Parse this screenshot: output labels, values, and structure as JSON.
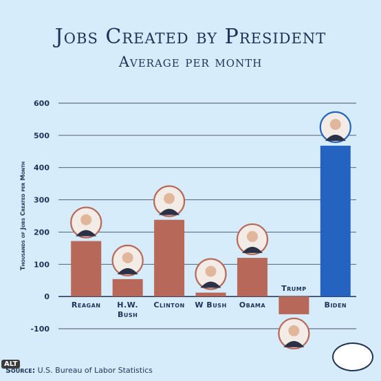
{
  "alt_badge": "ALT",
  "source": {
    "label": "Source:",
    "text": "U.S. Bureau of Labor Statistics"
  },
  "colors": {
    "bar": "#b86858",
    "highlight": "#2563c0",
    "text": "#1f3159",
    "background": "#d6ecfa"
  },
  "chart_data": {
    "type": "bar",
    "title": "Jobs Created by President",
    "subtitle": "Average per month",
    "xlabel": "",
    "ylabel": "Thousands of Jobs Created per Month",
    "ylim": [
      -100,
      600
    ],
    "yticks": [
      -100,
      0,
      100,
      200,
      300,
      400,
      500,
      600
    ],
    "grid": true,
    "categories": [
      {
        "label": [
          "Reagan"
        ],
        "value": 172,
        "highlight": false
      },
      {
        "label": [
          "H.W.",
          "Bush"
        ],
        "value": 54,
        "highlight": false
      },
      {
        "label": [
          "Clinton"
        ],
        "value": 238,
        "highlight": false
      },
      {
        "label": [
          "W Bush"
        ],
        "value": 12,
        "highlight": false
      },
      {
        "label": [
          "Obama"
        ],
        "value": 120,
        "highlight": false
      },
      {
        "label": [
          "Trump"
        ],
        "value": -55,
        "highlight": false
      },
      {
        "label": [
          "Biden"
        ],
        "value": 468,
        "highlight": true
      }
    ]
  }
}
